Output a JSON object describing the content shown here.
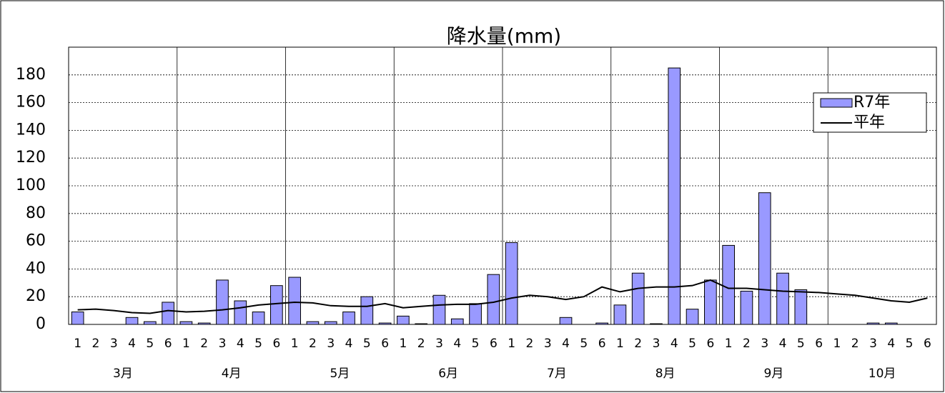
{
  "chart_data": {
    "type": "bar",
    "title": "降水量(mm)",
    "categories": [
      "1",
      "2",
      "3",
      "4",
      "5",
      "6",
      "1",
      "2",
      "3",
      "4",
      "5",
      "6",
      "1",
      "2",
      "3",
      "4",
      "5",
      "6",
      "1",
      "2",
      "3",
      "4",
      "5",
      "6",
      "1",
      "2",
      "3",
      "4",
      "5",
      "6",
      "1",
      "2",
      "3",
      "4",
      "5",
      "6",
      "1",
      "2",
      "3",
      "4",
      "5",
      "6",
      "1",
      "2",
      "3",
      "4",
      "5",
      "6"
    ],
    "groups": [
      "3月",
      "4月",
      "5月",
      "6月",
      "7月",
      "8月",
      "9月",
      "10月"
    ],
    "series": [
      {
        "name": "R7年",
        "type": "bar",
        "color": "#9999ff",
        "values": [
          9,
          0,
          0,
          5,
          2,
          16,
          2,
          1,
          32,
          17,
          9,
          28,
          34,
          2,
          2,
          9,
          20,
          1,
          6,
          0.5,
          21,
          4,
          15,
          36,
          59,
          0,
          0,
          5,
          0,
          1,
          14,
          37,
          0.5,
          185,
          11,
          32,
          57,
          24,
          95,
          37,
          25,
          0,
          0,
          0,
          1,
          1,
          0,
          0
        ]
      },
      {
        "name": "平年",
        "type": "line",
        "color": "#000000",
        "values": [
          10.5,
          11,
          10,
          8.5,
          8,
          10,
          9,
          9.5,
          10.5,
          12,
          14,
          15,
          16,
          15.5,
          13.5,
          13,
          13,
          15,
          12,
          13,
          14,
          14.5,
          14.5,
          16,
          19,
          21,
          20,
          18,
          20,
          27,
          23.5,
          26,
          27,
          27,
          28,
          32,
          26,
          26,
          25,
          24,
          23.5,
          23,
          22,
          21,
          19,
          17,
          16,
          19
        ]
      }
    ],
    "ylim": [
      0,
      200
    ],
    "yticks": [
      0,
      20,
      40,
      60,
      80,
      100,
      120,
      140,
      160,
      180
    ],
    "grid": true,
    "legend": "upper right"
  }
}
